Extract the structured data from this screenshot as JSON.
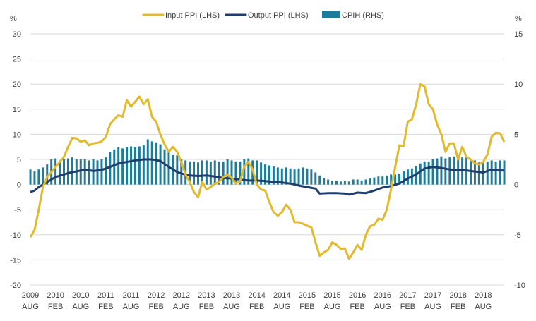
{
  "chart_data": {
    "type": "line",
    "legend_position": "top",
    "grid": true,
    "y_left": {
      "unit_label": "%",
      "range": [
        -20,
        30
      ],
      "ticks": [
        30,
        25,
        20,
        15,
        10,
        5,
        0,
        -5,
        -10,
        -15,
        -20
      ]
    },
    "y_right": {
      "unit_label": "%",
      "range": [
        -10,
        15
      ],
      "ticks": [
        15,
        10,
        5,
        0,
        -5,
        -10
      ]
    },
    "x_ticks": [
      {
        "year": "2009",
        "month": "AUG"
      },
      {
        "year": "2010",
        "month": "FEB"
      },
      {
        "year": "2010",
        "month": "AUG"
      },
      {
        "year": "2011",
        "month": "FEB"
      },
      {
        "year": "2011",
        "month": "AUG"
      },
      {
        "year": "2012",
        "month": "FEB"
      },
      {
        "year": "2012",
        "month": "AUG"
      },
      {
        "year": "2013",
        "month": "FEB"
      },
      {
        "year": "2013",
        "month": "AUG"
      },
      {
        "year": "2014",
        "month": "FEB"
      },
      {
        "year": "2014",
        "month": "AUG"
      },
      {
        "year": "2015",
        "month": "FEB"
      },
      {
        "year": "2015",
        "month": "AUG"
      },
      {
        "year": "2016",
        "month": "FEB"
      },
      {
        "year": "2016",
        "month": "AUG"
      },
      {
        "year": "2017",
        "month": "FEB"
      },
      {
        "year": "2017",
        "month": "AUG"
      },
      {
        "year": "2018",
        "month": "FEB"
      },
      {
        "year": "2018",
        "month": "AUG"
      }
    ],
    "series": [
      {
        "name": "Input PPI (LHS)",
        "type": "line",
        "axis": "left",
        "color": "#E2BA2E",
        "anchors": [
          [
            0,
            -10.5
          ],
          [
            1,
            -9
          ],
          [
            2,
            -5
          ],
          [
            3,
            -0.5
          ],
          [
            4,
            1.5
          ],
          [
            5,
            2.5
          ],
          [
            6,
            3.5
          ],
          [
            7,
            4.5
          ],
          [
            8,
            5.5
          ],
          [
            9,
            7.5
          ],
          [
            10,
            9.3
          ],
          [
            11,
            9.2
          ],
          [
            12,
            8.5
          ],
          [
            13,
            8.8
          ],
          [
            14,
            7.8
          ],
          [
            15,
            8.2
          ],
          [
            16,
            8.3
          ],
          [
            17,
            8.6
          ],
          [
            18,
            9.5
          ],
          [
            19,
            12
          ],
          [
            20,
            13
          ],
          [
            21,
            13.8
          ],
          [
            22,
            13.5
          ],
          [
            23,
            16.8
          ],
          [
            24,
            15.5
          ],
          [
            25,
            16.5
          ],
          [
            26,
            17.5
          ],
          [
            27,
            16
          ],
          [
            28,
            17
          ],
          [
            29,
            13.5
          ],
          [
            30,
            12.5
          ],
          [
            31,
            10
          ],
          [
            32,
            8
          ],
          [
            33,
            6.5
          ],
          [
            34,
            7.5
          ],
          [
            35,
            6.5
          ],
          [
            36,
            4.5
          ],
          [
            37,
            2
          ],
          [
            38,
            0.5
          ],
          [
            39,
            -1.5
          ],
          [
            40,
            -2.5
          ],
          [
            41,
            0.5
          ],
          [
            42,
            -1
          ],
          [
            43,
            -0.5
          ],
          [
            44,
            0.2
          ],
          [
            45,
            0.5
          ],
          [
            46,
            1.5
          ],
          [
            47,
            2
          ],
          [
            48,
            1.3
          ],
          [
            49,
            0.2
          ],
          [
            50,
            0.6
          ],
          [
            51,
            3.5
          ],
          [
            52,
            4.5
          ],
          [
            53,
            3
          ],
          [
            54,
            0
          ],
          [
            55,
            -1
          ],
          [
            56,
            -1.2
          ],
          [
            57,
            -3.5
          ],
          [
            58,
            -5.5
          ],
          [
            59,
            -6.2
          ],
          [
            60,
            -5.5
          ],
          [
            61,
            -4
          ],
          [
            62,
            -5
          ],
          [
            63,
            -7.5
          ],
          [
            64,
            -7.5
          ],
          [
            65,
            -7.8
          ],
          [
            66,
            -8.2
          ],
          [
            67,
            -8.5
          ],
          [
            68,
            -11.5
          ],
          [
            69,
            -14.2
          ],
          [
            70,
            -13.5
          ],
          [
            71,
            -13
          ],
          [
            72,
            -11.5
          ],
          [
            73,
            -12
          ],
          [
            74,
            -12.8
          ],
          [
            75,
            -12.7
          ],
          [
            76,
            -14.8
          ],
          [
            77,
            -13.5
          ],
          [
            78,
            -12
          ],
          [
            79,
            -13
          ],
          [
            80,
            -10
          ],
          [
            81,
            -8.3
          ],
          [
            82,
            -8
          ],
          [
            83,
            -6.8
          ],
          [
            84,
            -7
          ],
          [
            85,
            -5
          ],
          [
            86,
            -1
          ],
          [
            87,
            3.5
          ],
          [
            88,
            7.8
          ],
          [
            89,
            7.7
          ],
          [
            90,
            12.5
          ],
          [
            91,
            13
          ],
          [
            92,
            16
          ],
          [
            93,
            20
          ],
          [
            94,
            19.5
          ],
          [
            95,
            16
          ],
          [
            96,
            15
          ],
          [
            97,
            12
          ],
          [
            98,
            10
          ],
          [
            99,
            6.5
          ],
          [
            100,
            8.2
          ],
          [
            101,
            8.2
          ],
          [
            102,
            5
          ],
          [
            103,
            7.5
          ],
          [
            104,
            5.5
          ],
          [
            105,
            5
          ],
          [
            106,
            4.2
          ],
          [
            107,
            4
          ],
          [
            108,
            4.5
          ],
          [
            109,
            6
          ],
          [
            110,
            9.5
          ],
          [
            111,
            10.3
          ],
          [
            112,
            10.2
          ],
          [
            113,
            8.5
          ]
        ]
      },
      {
        "name": "Output PPI (LHS)",
        "type": "line",
        "axis": "left",
        "color": "#1F3D6D",
        "anchors": [
          [
            0,
            -1.5
          ],
          [
            1,
            -1.2
          ],
          [
            2,
            -0.5
          ],
          [
            4,
            0.5
          ],
          [
            6,
            1.5
          ],
          [
            8,
            2
          ],
          [
            10,
            2.5
          ],
          [
            11,
            2.6
          ],
          [
            13,
            3
          ],
          [
            15,
            2.7
          ],
          [
            17,
            2.9
          ],
          [
            19,
            3.5
          ],
          [
            21,
            4.2
          ],
          [
            23,
            4.5
          ],
          [
            25,
            4.8
          ],
          [
            27,
            5
          ],
          [
            29,
            5
          ],
          [
            31,
            4.7
          ],
          [
            33,
            3.5
          ],
          [
            35,
            2.5
          ],
          [
            36,
            2.2
          ],
          [
            38,
            1.8
          ],
          [
            40,
            1.7
          ],
          [
            42,
            1.8
          ],
          [
            44,
            1.6
          ],
          [
            46,
            1.3
          ],
          [
            48,
            1.2
          ],
          [
            50,
            1
          ],
          [
            52,
            0.8
          ],
          [
            54,
            0.8
          ],
          [
            56,
            0.7
          ],
          [
            58,
            0.5
          ],
          [
            60,
            0.4
          ],
          [
            62,
            0.2
          ],
          [
            64,
            -0.2
          ],
          [
            66,
            -0.5
          ],
          [
            68,
            -0.8
          ],
          [
            69,
            -1.8
          ],
          [
            71,
            -1.7
          ],
          [
            73,
            -1.7
          ],
          [
            75,
            -1.8
          ],
          [
            76,
            -2
          ],
          [
            78,
            -1.6
          ],
          [
            80,
            -1.7
          ],
          [
            82,
            -1.2
          ],
          [
            84,
            -0.6
          ],
          [
            86,
            -0.3
          ],
          [
            88,
            0.2
          ],
          [
            90,
            1.2
          ],
          [
            92,
            2
          ],
          [
            94,
            3.2
          ],
          [
            96,
            3.5
          ],
          [
            98,
            3.3
          ],
          [
            100,
            3
          ],
          [
            102,
            2.9
          ],
          [
            104,
            2.8
          ],
          [
            106,
            2.6
          ],
          [
            108,
            2.4
          ],
          [
            110,
            3
          ],
          [
            111,
            2.9
          ],
          [
            112,
            2.8
          ],
          [
            113,
            2.8
          ]
        ]
      },
      {
        "name": "CPIH (RHS)",
        "type": "bar",
        "axis": "right",
        "color": "#1B7C9B",
        "anchors": [
          [
            0,
            1.5
          ],
          [
            1,
            1.3
          ],
          [
            2,
            1.5
          ],
          [
            3,
            1.7
          ],
          [
            4,
            2
          ],
          [
            5,
            2.5
          ],
          [
            6,
            2.6
          ],
          [
            7,
            2.4
          ],
          [
            8,
            2.5
          ],
          [
            9,
            2.6
          ],
          [
            10,
            2.7
          ],
          [
            11,
            2.5
          ],
          [
            12,
            2.5
          ],
          [
            13,
            2.5
          ],
          [
            14,
            2.4
          ],
          [
            15,
            2.5
          ],
          [
            16,
            2.4
          ],
          [
            17,
            2.5
          ],
          [
            18,
            2.7
          ],
          [
            19,
            3.2
          ],
          [
            20,
            3.5
          ],
          [
            21,
            3.7
          ],
          [
            22,
            3.6
          ],
          [
            23,
            3.7
          ],
          [
            24,
            3.8
          ],
          [
            25,
            3.7
          ],
          [
            26,
            3.8
          ],
          [
            27,
            3.9
          ],
          [
            28,
            4.5
          ],
          [
            29,
            4.3
          ],
          [
            30,
            4.2
          ],
          [
            31,
            4
          ],
          [
            32,
            3.5
          ],
          [
            33,
            3.2
          ],
          [
            34,
            3
          ],
          [
            35,
            2.9
          ],
          [
            36,
            2.5
          ],
          [
            37,
            2.4
          ],
          [
            38,
            2.3
          ],
          [
            39,
            2.3
          ],
          [
            40,
            2.2
          ],
          [
            41,
            2.4
          ],
          [
            42,
            2.4
          ],
          [
            43,
            2.3
          ],
          [
            44,
            2.4
          ],
          [
            45,
            2.3
          ],
          [
            46,
            2.3
          ],
          [
            47,
            2.5
          ],
          [
            48,
            2.4
          ],
          [
            49,
            2.3
          ],
          [
            50,
            2.3
          ],
          [
            51,
            2.5
          ],
          [
            52,
            2.6
          ],
          [
            53,
            2.4
          ],
          [
            54,
            2.4
          ],
          [
            55,
            2.2
          ],
          [
            56,
            2
          ],
          [
            57,
            1.9
          ],
          [
            58,
            1.8
          ],
          [
            59,
            1.7
          ],
          [
            60,
            1.6
          ],
          [
            61,
            1.7
          ],
          [
            62,
            1.6
          ],
          [
            63,
            1.5
          ],
          [
            64,
            1.6
          ],
          [
            65,
            1.7
          ],
          [
            66,
            1.6
          ],
          [
            67,
            1.5
          ],
          [
            68,
            1.2
          ],
          [
            69,
            0.9
          ],
          [
            70,
            0.6
          ],
          [
            71,
            0.5
          ],
          [
            72,
            0.4
          ],
          [
            73,
            0.4
          ],
          [
            74,
            0.3
          ],
          [
            75,
            0.4
          ],
          [
            76,
            0.3
          ],
          [
            77,
            0.5
          ],
          [
            78,
            0.5
          ],
          [
            79,
            0.4
          ],
          [
            80,
            0.5
          ],
          [
            81,
            0.6
          ],
          [
            82,
            0.7
          ],
          [
            83,
            0.8
          ],
          [
            84,
            0.8
          ],
          [
            85,
            0.9
          ],
          [
            86,
            1
          ],
          [
            87,
            1
          ],
          [
            88,
            1.1
          ],
          [
            89,
            1.3
          ],
          [
            90,
            1.5
          ],
          [
            91,
            1.6
          ],
          [
            92,
            1.8
          ],
          [
            93,
            2.1
          ],
          [
            94,
            2.3
          ],
          [
            95,
            2.3
          ],
          [
            96,
            2.5
          ],
          [
            97,
            2.6
          ],
          [
            98,
            2.8
          ],
          [
            99,
            2.6
          ],
          [
            100,
            2.7
          ],
          [
            101,
            2.8
          ],
          [
            102,
            2.8
          ],
          [
            103,
            2.7
          ],
          [
            104,
            2.7
          ],
          [
            105,
            2.5
          ],
          [
            106,
            2.4
          ],
          [
            107,
            2.2
          ],
          [
            108,
            2.3
          ],
          [
            109,
            2.3
          ],
          [
            110,
            2.4
          ],
          [
            111,
            2.3
          ],
          [
            112,
            2.4
          ],
          [
            113,
            2.4
          ]
        ]
      }
    ]
  }
}
